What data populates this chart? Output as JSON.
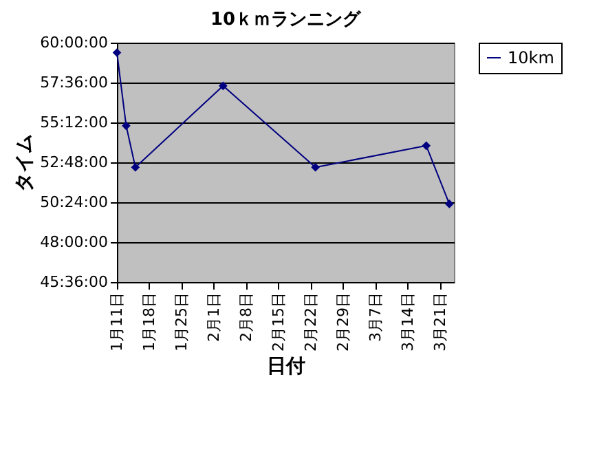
{
  "chart_data": {
    "type": "line",
    "title": "10ｋｍランニング",
    "xlabel": "日付",
    "ylabel": "タイム",
    "x": [
      "--01-11",
      "--01-13",
      "--01-15",
      "--02-03",
      "--02-23",
      "--03-18",
      "--03-23"
    ],
    "series": [
      {
        "name": "10km",
        "color": "#000080",
        "values": [
          59.4,
          55.0,
          52.5,
          57.4,
          52.5,
          53.8,
          50.3
        ]
      }
    ],
    "xlim": [
      "--01-11",
      "--03-24"
    ],
    "xticks": [
      {
        "value": "--01-11",
        "label": "1月11日"
      },
      {
        "value": "--01-18",
        "label": "1月18日"
      },
      {
        "value": "--01-25",
        "label": "1月25日"
      },
      {
        "value": "--02-01",
        "label": "2月1日"
      },
      {
        "value": "--02-08",
        "label": "2月8日"
      },
      {
        "value": "--02-15",
        "label": "2月15日"
      },
      {
        "value": "--02-22",
        "label": "2月22日"
      },
      {
        "value": "--02-29",
        "label": "2月29日"
      },
      {
        "value": "--03-07",
        "label": "3月7日"
      },
      {
        "value": "--03-14",
        "label": "3月14日"
      },
      {
        "value": "--03-21",
        "label": "3月21日"
      }
    ],
    "ylim": [
      45.6,
      60
    ],
    "yticks": [
      {
        "value": 45.6,
        "label": "45:36:00"
      },
      {
        "value": 48,
        "label": "48:00:00"
      },
      {
        "value": 50.4,
        "label": "50:24:00"
      },
      {
        "value": 52.8,
        "label": "52:48:00"
      },
      {
        "value": 55.2,
        "label": "55:12:00"
      },
      {
        "value": 57.6,
        "label": "57:36:00"
      },
      {
        "value": 60,
        "label": "60:00:00"
      }
    ],
    "grid": "y",
    "legend": "right",
    "marker": "diamond",
    "line_style": "solid"
  }
}
